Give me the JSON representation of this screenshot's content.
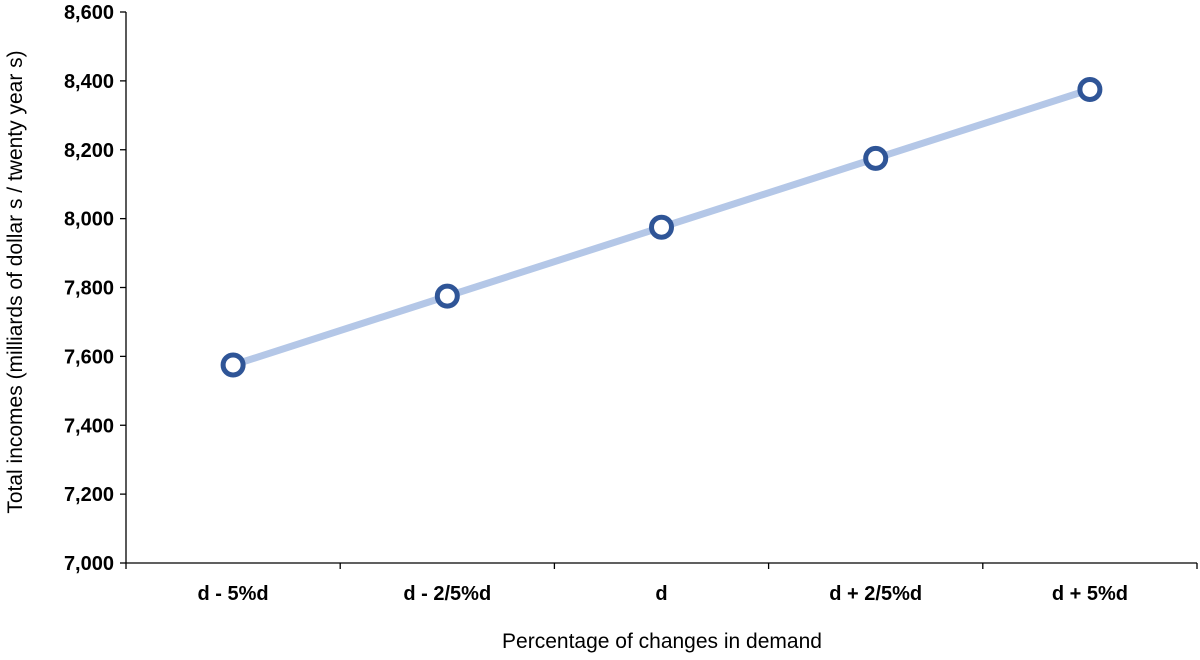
{
  "chart_data": {
    "type": "line",
    "title": "",
    "xlabel": "Percentage of changes in demand",
    "ylabel": "Total incomes (milliards of dollar s / twenty year s)",
    "categories": [
      "d - 5%d",
      "d - 2/5%d",
      "d",
      "d + 2/5%d",
      "d + 5%d"
    ],
    "series": [
      {
        "values": [
          7575,
          7775,
          7975,
          8175,
          8375
        ]
      }
    ],
    "ylim": [
      7000,
      8600
    ],
    "yticks": [
      7000,
      7200,
      7400,
      7600,
      7800,
      8000,
      8200,
      8400,
      8600
    ],
    "ytick_labels": [
      "7,000",
      "7,200",
      "7,400",
      "7,600",
      "7,800",
      "8,000",
      "8,200",
      "8,400",
      "8,600"
    ],
    "grid": false,
    "legend": "none"
  },
  "colors": {
    "line": "#b4c7e7",
    "marker_stroke": "#2f5597",
    "marker_fill": "#ffffff",
    "axis": "#000000"
  }
}
